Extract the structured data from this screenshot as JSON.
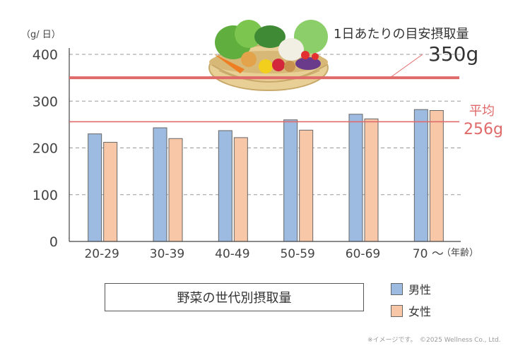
{
  "chart_data": {
    "type": "bar",
    "title": "野菜の世代別摂取量",
    "ylabel": "（g/ 日）",
    "xunit": "（年齢）",
    "ylim": [
      0,
      400
    ],
    "yticks": [
      0,
      100,
      200,
      300,
      400
    ],
    "categories": [
      "20-29",
      "30-39",
      "40-49",
      "50-59",
      "60-69",
      "70 ～"
    ],
    "series": [
      {
        "name": "男性",
        "color": "#9dbbe0",
        "values": [
          230,
          243,
          237,
          260,
          272,
          282
        ]
      },
      {
        "name": "女性",
        "color": "#f7c7a8",
        "values": [
          212,
          220,
          222,
          238,
          262,
          280
        ]
      }
    ],
    "reference_lines": [
      {
        "label": "1日あたりの目安摂取量",
        "value_text": "350g",
        "value": 350,
        "color": "#e06a6a"
      },
      {
        "label": "平均",
        "value_text": "256g",
        "value": 256,
        "color": "#e06a6a"
      }
    ],
    "grid": "dashed horizontal",
    "legend": "bottom-right"
  },
  "footer": "※イメージです。　©2025 Wellness Co., Ltd."
}
